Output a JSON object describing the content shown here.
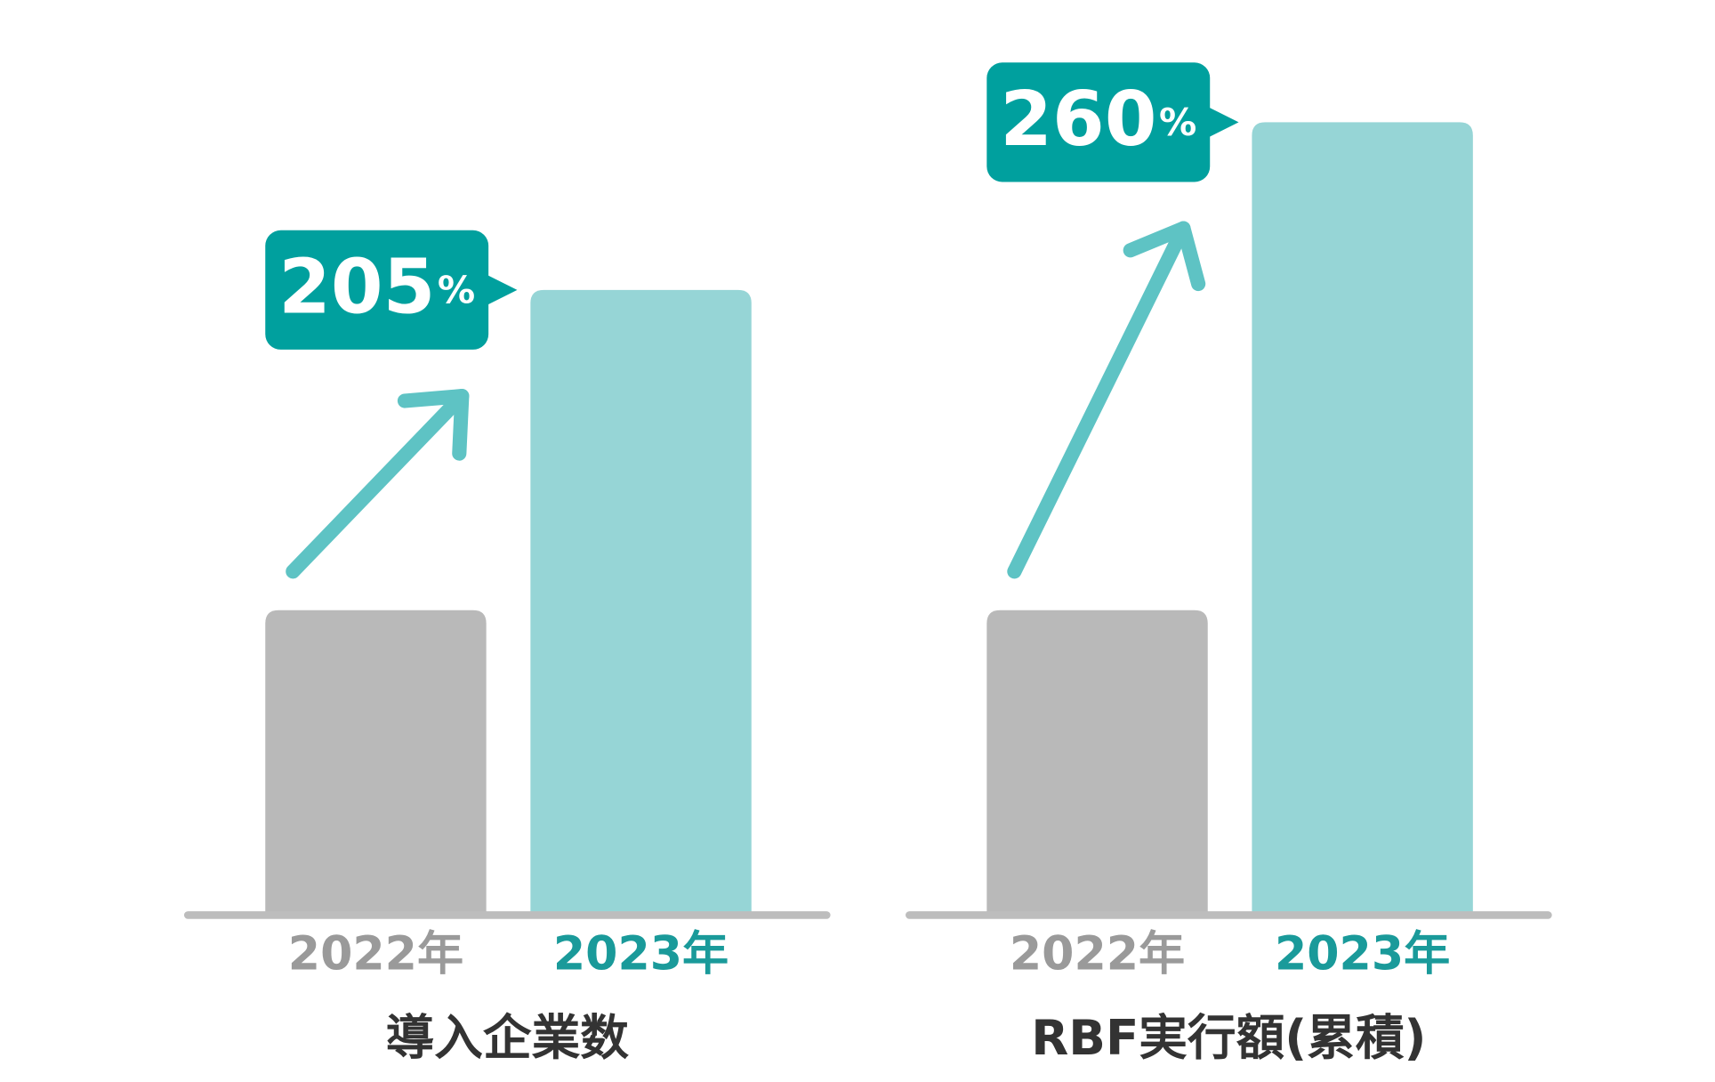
{
  "chart_data": [
    {
      "type": "bar",
      "title": "導入企業数",
      "categories": [
        "2022年",
        "2023年"
      ],
      "values": [
        100,
        205
      ],
      "colors": [
        "#b9b9b9",
        "#96d5d6"
      ],
      "label_colors": [
        "#9a9a9a",
        "#1a9a9a"
      ],
      "ylim": [
        0,
        270
      ],
      "annotation": {
        "value": 205,
        "unit": "%"
      }
    },
    {
      "type": "bar",
      "title": "RBF実行額(累積)",
      "categories": [
        "2022年",
        "2023年"
      ],
      "values": [
        100,
        260
      ],
      "colors": [
        "#b9b9b9",
        "#96d5d6"
      ],
      "label_colors": [
        "#9a9a9a",
        "#1a9a9a"
      ],
      "ylim": [
        0,
        270
      ],
      "annotation": {
        "value": 260,
        "unit": "%"
      }
    }
  ]
}
